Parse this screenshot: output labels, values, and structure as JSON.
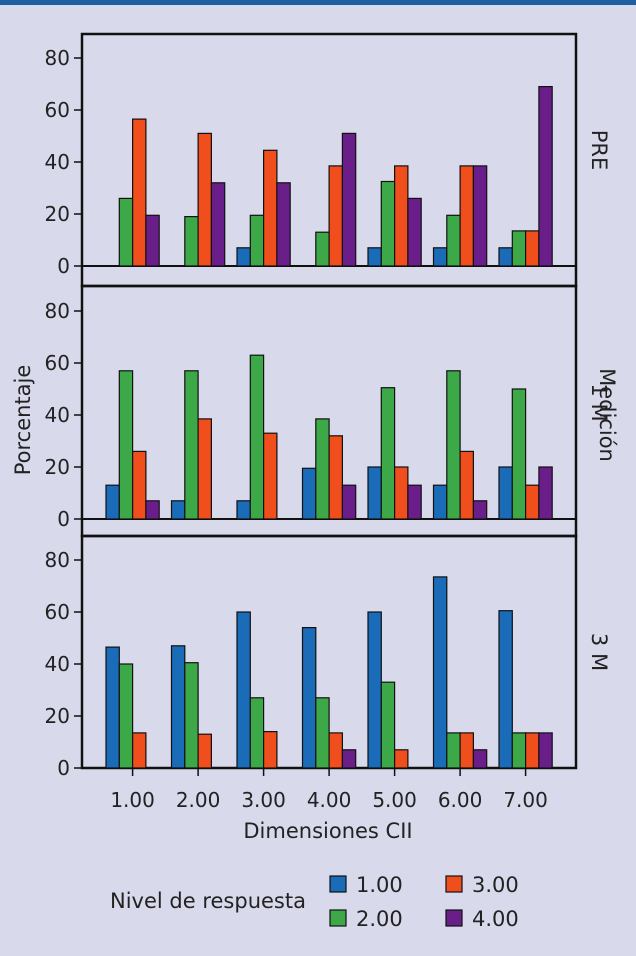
{
  "chart_data": {
    "type": "bar",
    "ylabel": "Porcentaje",
    "xlabel": "Dimensiones CII",
    "facet_label": "Medición",
    "categories": [
      "1.00",
      "2.00",
      "3.00",
      "4.00",
      "5.00",
      "6.00",
      "7.00"
    ],
    "y_ticks": [
      "0",
      "20",
      "40",
      "60",
      "80"
    ],
    "ylim": [
      0,
      85
    ],
    "legend": {
      "title": "Nivel de respuesta",
      "items": [
        {
          "label": "1.00",
          "color": "#1a6bb8"
        },
        {
          "label": "2.00",
          "color": "#3ca847"
        },
        {
          "label": "3.00",
          "color": "#f04e1c"
        },
        {
          "label": "4.00",
          "color": "#6a1e8a"
        }
      ]
    },
    "panels": [
      {
        "label": "PRE",
        "series": [
          {
            "name": "1.00",
            "values": [
              0,
              0,
              7,
              0,
              7,
              7,
              7
            ]
          },
          {
            "name": "2.00",
            "values": [
              26,
              19,
              19.5,
              13,
              32.5,
              19.5,
              13.5
            ]
          },
          {
            "name": "3.00",
            "values": [
              56.5,
              51,
              44.5,
              38.5,
              38.5,
              38.5,
              13.5
            ]
          },
          {
            "name": "4.00",
            "values": [
              19.5,
              32,
              32,
              51,
              26,
              38.5,
              69
            ]
          }
        ]
      },
      {
        "label": "1 M",
        "series": [
          {
            "name": "1.00",
            "values": [
              13,
              7,
              7,
              19.5,
              20,
              13,
              20
            ]
          },
          {
            "name": "2.00",
            "values": [
              57,
              57,
              63,
              38.5,
              50.5,
              57,
              50
            ]
          },
          {
            "name": "3.00",
            "values": [
              26,
              38.5,
              33,
              32,
              20,
              26,
              13
            ]
          },
          {
            "name": "4.00",
            "values": [
              7,
              0,
              0,
              13,
              13,
              7,
              20
            ]
          }
        ]
      },
      {
        "label": "3 M",
        "series": [
          {
            "name": "1.00",
            "values": [
              46.5,
              47,
              60,
              54,
              60,
              73.5,
              60.5
            ]
          },
          {
            "name": "2.00",
            "values": [
              40,
              40.5,
              27,
              27,
              33,
              13.5,
              13.5
            ]
          },
          {
            "name": "3.00",
            "values": [
              13.5,
              13,
              14,
              13.5,
              7,
              13.5,
              13.5
            ]
          },
          {
            "name": "4.00",
            "values": [
              0,
              0,
              0,
              7,
              0,
              7,
              13.5
            ]
          }
        ]
      }
    ]
  }
}
